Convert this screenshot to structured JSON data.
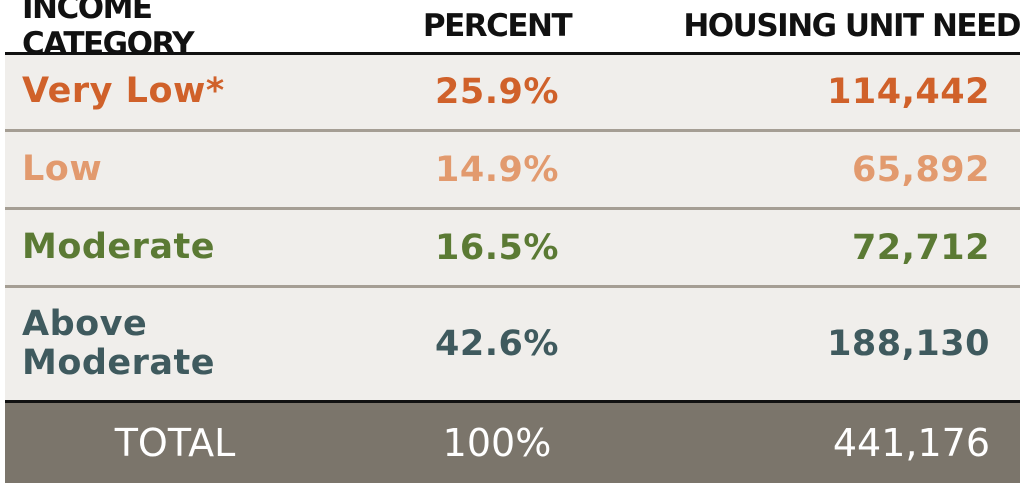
{
  "table": {
    "header": [
      "INCOME CATEGORY",
      "PERCENT",
      "HOUSING UNIT NEED"
    ],
    "rows": [
      [
        "Very Low*",
        "25.9%",
        "114,442"
      ],
      [
        "Low",
        "14.9%",
        "65,892"
      ],
      [
        "Moderate",
        "16.5%",
        "72,712"
      ],
      [
        "Above Moderate",
        "42.6%",
        "188,130"
      ]
    ],
    "total": [
      "TOTAL",
      "100%",
      "441,176"
    ]
  }
}
